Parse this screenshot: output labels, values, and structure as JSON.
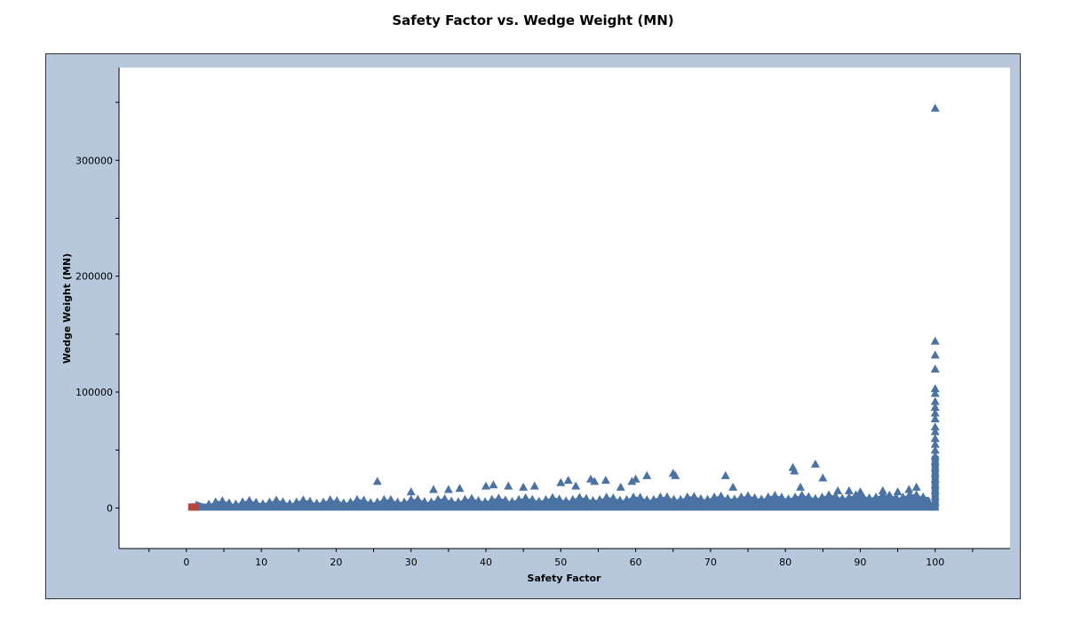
{
  "chart_data": {
    "type": "scatter",
    "title": "Safety Factor vs. Wedge Weight (MN)",
    "xlabel": "Safety Factor",
    "ylabel": "Wedge Weight (MN)",
    "xlim": [
      -9,
      110
    ],
    "ylim": [
      -35000,
      380000
    ],
    "x_ticks": [
      0,
      10,
      20,
      30,
      40,
      50,
      60,
      70,
      80,
      90,
      100
    ],
    "y_ticks": [
      0,
      100000,
      200000,
      300000
    ],
    "grid": false,
    "colors": {
      "series": "#4a73a4",
      "failure": "#b5463f",
      "frame": "#b7c8dc"
    },
    "series": [
      {
        "marker": "triangle",
        "points": [
          [
            25.5,
            23000
          ],
          [
            30,
            14000
          ],
          [
            33,
            16000
          ],
          [
            35,
            16000
          ],
          [
            36.5,
            17000
          ],
          [
            40,
            19000
          ],
          [
            41,
            20000
          ],
          [
            43,
            19000
          ],
          [
            45,
            18000
          ],
          [
            46.5,
            19000
          ],
          [
            50,
            22000
          ],
          [
            51,
            24000
          ],
          [
            52,
            19000
          ],
          [
            54,
            25000
          ],
          [
            54.5,
            23000
          ],
          [
            56,
            24000
          ],
          [
            58,
            18000
          ],
          [
            59.5,
            23000
          ],
          [
            60,
            25000
          ],
          [
            61.5,
            28000
          ],
          [
            65,
            30000
          ],
          [
            65.3,
            28000
          ],
          [
            72,
            28000
          ],
          [
            73,
            18000
          ],
          [
            81,
            35000
          ],
          [
            81.2,
            32000
          ],
          [
            82,
            18000
          ],
          [
            84,
            38000
          ],
          [
            85,
            26000
          ],
          [
            87,
            15000
          ],
          [
            88.5,
            15000
          ],
          [
            90,
            14000
          ],
          [
            93,
            15000
          ],
          [
            95,
            14000
          ],
          [
            96.5,
            16000
          ],
          [
            97.5,
            18000
          ],
          [
            100,
            345000
          ],
          [
            100,
            144000
          ],
          [
            100,
            132000
          ],
          [
            100,
            120000
          ],
          [
            100,
            103000
          ],
          [
            100,
            99000
          ],
          [
            100,
            92000
          ],
          [
            100,
            87000
          ],
          [
            100,
            82000
          ],
          [
            100,
            77000
          ],
          [
            100,
            70000
          ],
          [
            100,
            66000
          ],
          [
            100,
            60000
          ],
          [
            100,
            55000
          ],
          [
            100,
            50000
          ],
          [
            100,
            45000
          ],
          [
            100,
            40000
          ],
          [
            100,
            35000
          ],
          [
            100,
            30000
          ],
          [
            100,
            25000
          ],
          [
            100,
            20000
          ],
          [
            100,
            15000
          ],
          [
            100,
            10000
          ],
          [
            100,
            5000
          ]
        ]
      },
      {
        "marker": "square",
        "points": [
          [
            0.7,
            800
          ],
          [
            1,
            800
          ],
          [
            1.2,
            800
          ]
        ]
      }
    ]
  }
}
